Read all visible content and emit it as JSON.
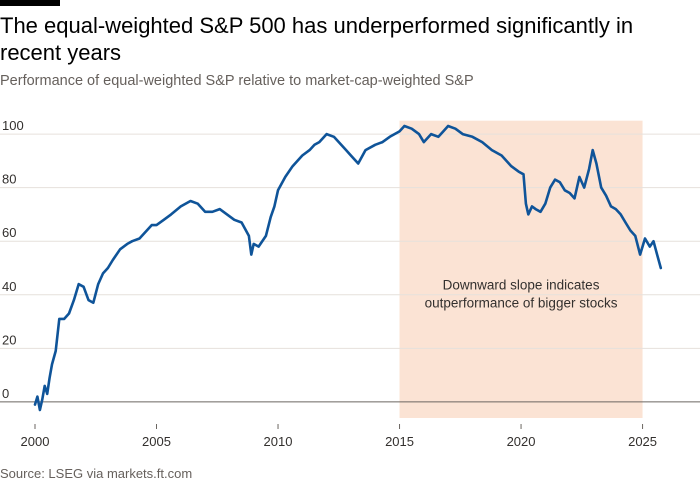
{
  "title": "The equal-weighted S&P 500 has underperformed significantly in recent years",
  "subtitle": "Performance of equal-weighted S&P relative to market-cap-weighted S&P",
  "source": "Source: LSEG via markets.ft.com",
  "colors": {
    "line": "#0f5499",
    "shade": "#fbe3d4",
    "grid": "#e6e1dc",
    "text": "#33302e",
    "zero": "#6b6661"
  },
  "chart_data": {
    "type": "line",
    "title": "",
    "xlabel": "",
    "ylabel": "",
    "xlim": [
      2000,
      2025.8
    ],
    "ylim": [
      -6,
      106
    ],
    "xticks": [
      2000,
      2005,
      2010,
      2015,
      2020,
      2025
    ],
    "yticks": [
      0,
      20,
      40,
      60,
      80,
      100
    ],
    "grid": "horizontal",
    "shaded_region": {
      "x_start": 2015,
      "x_end": 2025,
      "y_top": 105
    },
    "annotation": {
      "lines": [
        "Downward slope indicates",
        "outperformance of bigger stocks"
      ],
      "x": 2020,
      "y": 42
    },
    "series": [
      {
        "x": [
          2000.0,
          2000.1,
          2000.2,
          2000.3,
          2000.4,
          2000.5,
          2000.6,
          2000.7,
          2000.85,
          2001.0,
          2001.2,
          2001.4,
          2001.6,
          2001.8,
          2002.0,
          2002.2,
          2002.4,
          2002.6,
          2002.8,
          2003.0,
          2003.2,
          2003.5,
          2003.8,
          2004.0,
          2004.3,
          2004.6,
          2004.8,
          2005.0,
          2005.3,
          2005.6,
          2006.0,
          2006.4,
          2006.7,
          2007.0,
          2007.3,
          2007.6,
          2007.9,
          2008.2,
          2008.5,
          2008.8,
          2008.9,
          2009.0,
          2009.2,
          2009.5,
          2009.7,
          2009.85,
          2010.0,
          2010.3,
          2010.6,
          2011.0,
          2011.3,
          2011.5,
          2011.7,
          2012.0,
          2012.3,
          2012.6,
          2012.8,
          2013.0,
          2013.3,
          2013.6,
          2014.0,
          2014.3,
          2014.6,
          2015.0,
          2015.2,
          2015.5,
          2015.8,
          2016.0,
          2016.3,
          2016.6,
          2016.8,
          2017.0,
          2017.3,
          2017.6,
          2018.0,
          2018.4,
          2018.8,
          2019.2,
          2019.6,
          2019.9,
          2020.1,
          2020.2,
          2020.3,
          2020.45,
          2020.6,
          2020.8,
          2021.0,
          2021.2,
          2021.4,
          2021.6,
          2021.8,
          2022.0,
          2022.2,
          2022.4,
          2022.6,
          2022.8,
          2022.95,
          2023.1,
          2023.3,
          2023.5,
          2023.7,
          2023.9,
          2024.1,
          2024.3,
          2024.5,
          2024.7,
          2024.9,
          2025.1,
          2025.3,
          2025.45,
          2025.6,
          2025.75
        ],
        "y": [
          -1,
          2,
          -3,
          1,
          6,
          3,
          9,
          14,
          19,
          31,
          31,
          33,
          38,
          44,
          43,
          38,
          37,
          44,
          48,
          50,
          53,
          57,
          59,
          60,
          61,
          64,
          66,
          66,
          68,
          70,
          73,
          75,
          74,
          71,
          71,
          72,
          70,
          68,
          67,
          62,
          55,
          59,
          58,
          62,
          69,
          73,
          79,
          84,
          88,
          92,
          94,
          96,
          97,
          100,
          99,
          96,
          94,
          92,
          89,
          94,
          96,
          97,
          99,
          101,
          103,
          102,
          100,
          97,
          100,
          99,
          101,
          103,
          102,
          100,
          99,
          97,
          94,
          92,
          88,
          86,
          85,
          74,
          70,
          73,
          72,
          71,
          74,
          80,
          83,
          82,
          79,
          78,
          76,
          84,
          80,
          87,
          94,
          89,
          80,
          77,
          73,
          72,
          70,
          67,
          64,
          62,
          55,
          61,
          58,
          60,
          55,
          50
        ]
      }
    ]
  }
}
